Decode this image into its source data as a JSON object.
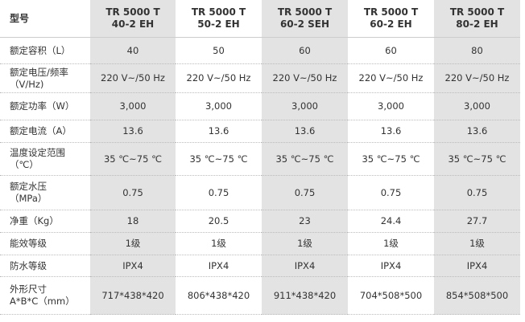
{
  "table": {
    "header": {
      "label": "型号",
      "models": [
        [
          "TR 5000 T",
          "40-2 EH"
        ],
        [
          "TR 5000 T",
          "50-2 EH"
        ],
        [
          "TR 5000 T",
          "60-2 SEH"
        ],
        [
          "TR 5000 T",
          "60-2 EH"
        ],
        [
          "TR 5000 T",
          "80-2 EH"
        ]
      ]
    },
    "rows": [
      {
        "label": [
          "额定容积（L）"
        ],
        "cells": [
          "40",
          "50",
          "60",
          "60",
          "80"
        ]
      },
      {
        "label": [
          "额定电压/频率",
          "（V/Hz)"
        ],
        "cells": [
          "220 V~/50 Hz",
          "220 V~/50 Hz",
          "220 V~/50 Hz",
          "220 V~/50 Hz",
          "220 V~/50 Hz"
        ]
      },
      {
        "label": [
          "额定功率（W）"
        ],
        "cells": [
          "3,000",
          "3,000",
          "3,000",
          "3,000",
          "3,000"
        ]
      },
      {
        "label": [
          "额定电流（A）"
        ],
        "cells": [
          "13.6",
          "13.6",
          "13.6",
          "13.6",
          "13.6"
        ]
      },
      {
        "label": [
          "温度设定范围",
          "（℃）"
        ],
        "cells": [
          "35 ℃~75 ℃",
          "35 ℃~75 ℃",
          "35 ℃~75 ℃",
          "35 ℃~75 ℃",
          "35 ℃~75 ℃"
        ]
      },
      {
        "label": [
          "额定水压",
          "（MPa）"
        ],
        "cells": [
          "0.75",
          "0.75",
          "0.75",
          "0.75",
          "0.75"
        ]
      },
      {
        "label": [
          "净重（Kg）"
        ],
        "cells": [
          "18",
          "20.5",
          "23",
          "24.4",
          "27.7"
        ]
      },
      {
        "label": [
          "能效等级"
        ],
        "cells": [
          "1级",
          "1级",
          "1级",
          "1级",
          "1级"
        ]
      },
      {
        "label": [
          "防水等级"
        ],
        "cells": [
          "IPX4",
          "IPX4",
          "IPX4",
          "IPX4",
          "IPX4"
        ]
      },
      {
        "label": [
          "外形尺寸",
          "A*B*C（mm）"
        ],
        "cells": [
          "717*438*420",
          "806*438*420",
          "911*438*420",
          "704*508*500",
          "854*508*500"
        ]
      }
    ]
  }
}
